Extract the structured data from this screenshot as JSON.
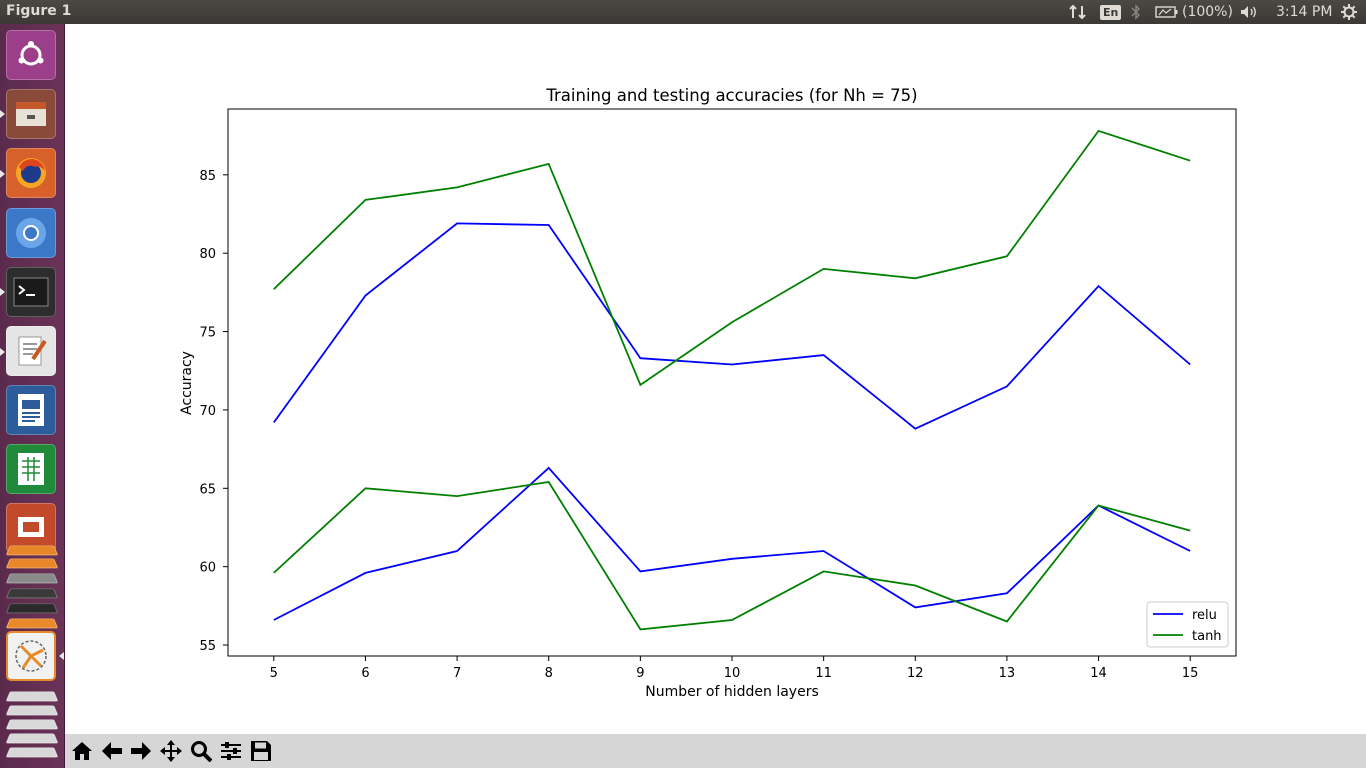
{
  "window": {
    "title": "Figure 1"
  },
  "tray": {
    "keyboard_layout": "En",
    "battery_text": "(100%)",
    "clock": "3:14 PM",
    "icons": [
      "network-transfer-icon",
      "bluetooth-icon",
      "battery-icon",
      "volume-icon",
      "settings-gear-icon"
    ]
  },
  "launcher": {
    "items": [
      {
        "name": "ubuntu-dash-icon",
        "color": "#9b3f8a"
      },
      {
        "name": "files-icon",
        "color": "#8a4a3a"
      },
      {
        "name": "firefox-icon",
        "color": "#d8602a"
      },
      {
        "name": "chromium-icon",
        "color": "#3b78c8"
      },
      {
        "name": "terminal-icon",
        "color": "#2d2d2d"
      },
      {
        "name": "text-editor-icon",
        "color": "#e5e5e5"
      },
      {
        "name": "libreoffice-writer-icon",
        "color": "#2c5d9a"
      },
      {
        "name": "libreoffice-calc-icon",
        "color": "#1f8a3a"
      },
      {
        "name": "libreoffice-impress-icon",
        "color": "#c24a2a"
      },
      {
        "name": "amazon-icon",
        "color": "#e8862a"
      },
      {
        "name": "system-settings-icon",
        "color": "#8a8a8a"
      },
      {
        "name": "python-figure-icon",
        "color": "#f2f2f2"
      }
    ]
  },
  "toolbar": {
    "buttons": [
      "home-icon",
      "back-arrow-icon",
      "forward-arrow-icon",
      "pan-icon",
      "zoom-icon",
      "configure-subplots-icon",
      "save-icon"
    ]
  },
  "chart_data": {
    "type": "line",
    "title": "Training and testing accuracies (for Nh = 75)",
    "xlabel": "Number of hidden layers",
    "ylabel": "Accuracy",
    "x": [
      5,
      6,
      7,
      8,
      9,
      10,
      11,
      12,
      13,
      14,
      15
    ],
    "xticks": [
      5,
      6,
      7,
      8,
      9,
      10,
      11,
      12,
      13,
      14,
      15
    ],
    "yticks": [
      55,
      60,
      65,
      70,
      75,
      80,
      85
    ],
    "xlim": [
      4.5,
      15.5
    ],
    "ylim": [
      54.3,
      89.2
    ],
    "grid": false,
    "legend_position": "lower right",
    "legend": [
      {
        "label": "relu",
        "color": "#0000ff"
      },
      {
        "label": "tanh",
        "color": "#008000"
      }
    ],
    "series": [
      {
        "color": "#0000ff",
        "values": [
          69.2,
          77.3,
          81.9,
          81.8,
          73.3,
          72.9,
          73.5,
          68.8,
          71.5,
          77.9,
          72.9
        ]
      },
      {
        "color": "#008000",
        "values": [
          77.7,
          83.4,
          84.2,
          85.7,
          71.6,
          75.6,
          79.0,
          78.4,
          79.8,
          87.8,
          85.9
        ]
      },
      {
        "color": "#0000ff",
        "values": [
          56.6,
          59.6,
          61.0,
          66.3,
          59.7,
          60.5,
          61.0,
          57.4,
          58.3,
          63.9,
          61.0
        ]
      },
      {
        "color": "#008000",
        "values": [
          59.6,
          65.0,
          64.5,
          65.4,
          56.0,
          56.6,
          59.7,
          58.8,
          56.5,
          63.9,
          62.3
        ]
      }
    ]
  }
}
